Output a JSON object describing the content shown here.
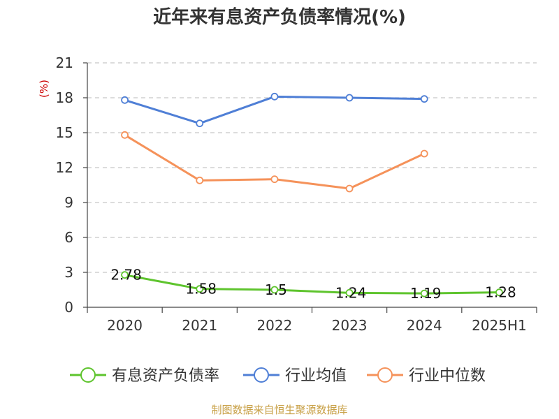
{
  "chart_data": {
    "type": "line",
    "title": "近年来有息资产负债率情况(%)",
    "unit_label": "(%)",
    "categories": [
      "2020",
      "2021",
      "2022",
      "2023",
      "2024",
      "2025H1"
    ],
    "ylim": [
      0,
      21
    ],
    "yticks": [
      0,
      3,
      6,
      9,
      12,
      15,
      18,
      21
    ],
    "grid": true,
    "legend_position": "bottom",
    "series": [
      {
        "name": "有息资产负债率",
        "color": "#5ec42d",
        "values": [
          2.78,
          1.58,
          1.5,
          1.24,
          1.19,
          1.28
        ],
        "labels": [
          "2.78",
          "1.58",
          "1.5",
          "1.24",
          "1.19",
          "1.28"
        ]
      },
      {
        "name": "行业均值",
        "color": "#4f7fd6",
        "values": [
          17.8,
          15.8,
          18.1,
          18.0,
          17.9,
          null
        ]
      },
      {
        "name": "行业中位数",
        "color": "#f5925a",
        "values": [
          14.8,
          10.9,
          11.0,
          10.2,
          13.2,
          null
        ]
      }
    ],
    "source": "制图数据来自恒生聚源数据库"
  }
}
